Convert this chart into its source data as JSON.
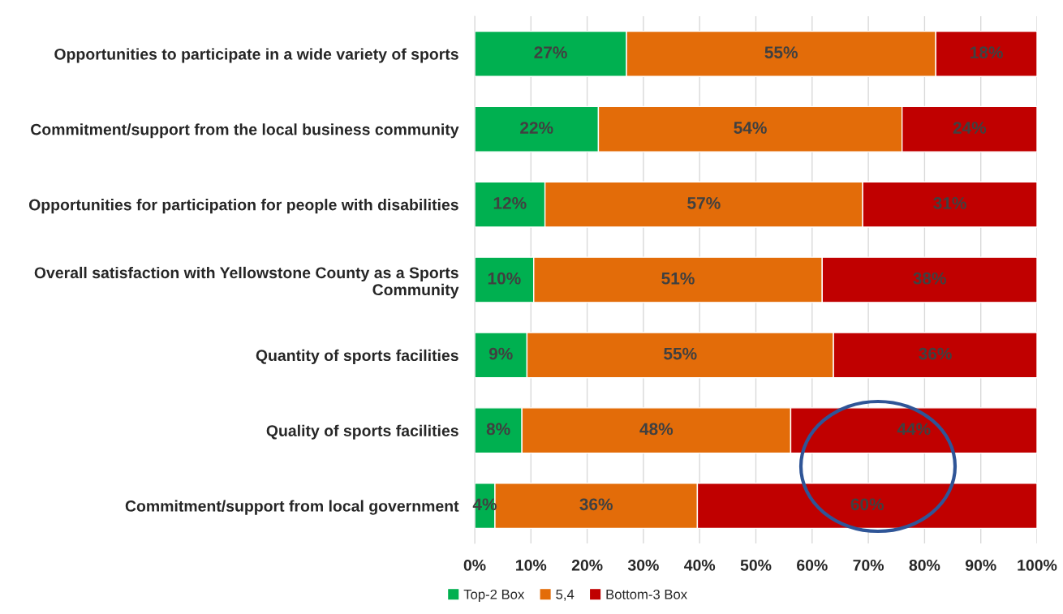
{
  "chart_data": {
    "type": "bar",
    "orientation": "horizontal",
    "stacked": true,
    "categories": [
      "Opportunities to participate in a wide variety of sports",
      "Commitment/support from the local business community",
      "Opportunities for participation for people with disabilities",
      "Overall satisfaction with Yellowstone County as a Sports Community",
      "Quantity of sports facilities",
      "Quality of sports facilities",
      "Commitment/support from local government"
    ],
    "series": [
      {
        "name": "Top-2 Box",
        "color": "#00b050",
        "values": [
          27,
          22,
          12.5,
          10.5,
          9.3,
          8.4,
          3.6
        ],
        "value_labels": [
          "27%",
          "22%",
          "12%",
          "10%",
          "9%",
          "8%",
          "4%"
        ]
      },
      {
        "name": "5,4",
        "color": "#e36c09",
        "values": [
          55,
          54,
          56.5,
          51.3,
          54.5,
          47.8,
          36
        ],
        "value_labels": [
          "55%",
          "54%",
          "57%",
          "51%",
          "55%",
          "48%",
          "36%"
        ]
      },
      {
        "name": "Bottom-3 Box",
        "color": "#c00000",
        "values": [
          18,
          24,
          31,
          38.2,
          36.2,
          43.8,
          60.4
        ],
        "value_labels": [
          "18%",
          "24%",
          "31%",
          "38%",
          "36%",
          "44%",
          "60%"
        ]
      }
    ],
    "xlim": [
      0,
      100
    ],
    "xticks": [
      {
        "value": 0,
        "label": "0%"
      },
      {
        "value": 10,
        "label": "10%"
      },
      {
        "value": 20,
        "label": "20%"
      },
      {
        "value": 30,
        "label": "30%"
      },
      {
        "value": 40,
        "label": "40%"
      },
      {
        "value": 50,
        "label": "50%"
      },
      {
        "value": 60,
        "label": "60%"
      },
      {
        "value": 70,
        "label": "70%"
      },
      {
        "value": 80,
        "label": "80%"
      },
      {
        "value": 90,
        "label": "90%"
      },
      {
        "value": 100,
        "label": "100%"
      }
    ],
    "grid": "x",
    "legend": "bottom"
  }
}
